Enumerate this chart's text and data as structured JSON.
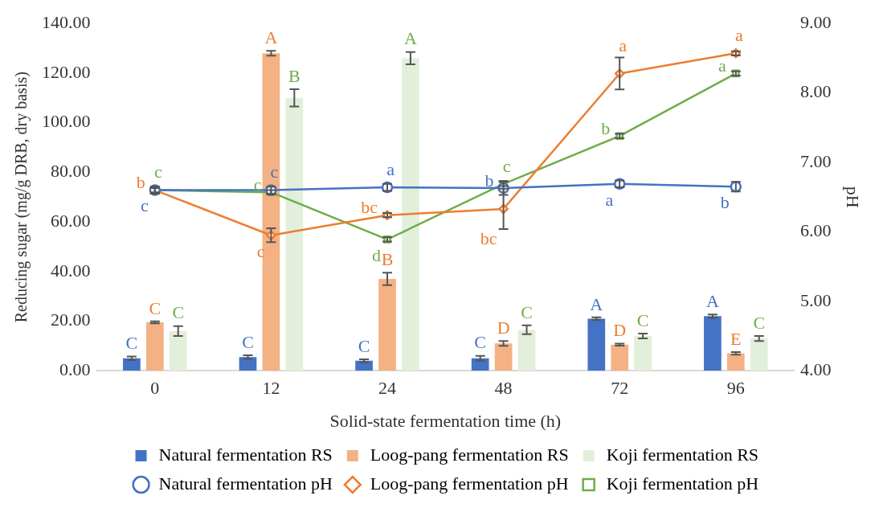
{
  "chart_data": {
    "type": "bar",
    "xlabel": "Solid-state fermentation time (h)",
    "ylabel": "Reducing sugar (mg/g DRB, dry basis)",
    "y2label": "pH",
    "categories": [
      "0",
      "12",
      "24",
      "48",
      "72",
      "96"
    ],
    "ylim": [
      0,
      140
    ],
    "yticks": [
      {
        "value": 0,
        "label": "0.00"
      },
      {
        "value": 20,
        "label": "20.00"
      },
      {
        "value": 40,
        "label": "40.00"
      },
      {
        "value": 60,
        "label": "60.00"
      },
      {
        "value": 80,
        "label": "80.00"
      },
      {
        "value": 100,
        "label": "100.00"
      },
      {
        "value": 120,
        "label": "120.00"
      },
      {
        "value": 140,
        "label": "140.00"
      }
    ],
    "y2lim": [
      4,
      9
    ],
    "y2ticks": [
      {
        "value": 4,
        "label": "4.00"
      },
      {
        "value": 5,
        "label": "5.00"
      },
      {
        "value": 6,
        "label": "6.00"
      },
      {
        "value": 7,
        "label": "7.00"
      },
      {
        "value": 8,
        "label": "8.00"
      },
      {
        "value": 9,
        "label": "9.00"
      }
    ],
    "grid": false,
    "legend": "bottom",
    "series": [
      {
        "name": "Natural fermentation RS",
        "color": "#4472c4",
        "values": [
          5,
          5.5,
          4,
          5,
          21,
          22
        ],
        "errors": [
          0.7,
          0.7,
          0.6,
          1,
          0.5,
          0.7
        ],
        "value_labels": [
          "C",
          "C",
          "C",
          "C",
          "A",
          "A"
        ]
      },
      {
        "name": "Loog-pang fermentation RS",
        "color": "#f4b183",
        "values": [
          19.5,
          128,
          37,
          11,
          10.5,
          7
        ],
        "errors": [
          0.4,
          1,
          2.5,
          1,
          0.4,
          0.5
        ],
        "value_labels": [
          "C",
          "A",
          "B",
          "D",
          "D",
          "E"
        ]
      },
      {
        "name": "Koji fermentation RS",
        "color": "#e2efda",
        "values": [
          16,
          110,
          126,
          16.5,
          14,
          13
        ],
        "errors": [
          2,
          3.5,
          2.5,
          1.8,
          1,
          1
        ],
        "value_labels": [
          "C",
          "B",
          "A",
          "C",
          "C",
          "C"
        ]
      },
      {
        "name": "Natural fermentation pH",
        "type": "line",
        "axis": "y2",
        "color": "#4472c4",
        "marker": "circle",
        "values": [
          6.6,
          6.6,
          6.64,
          6.63,
          6.69,
          6.65
        ],
        "errors": [
          0.05,
          0.05,
          0.05,
          0.1,
          0.05,
          0.07
        ],
        "value_labels": [
          "c",
          "c",
          "a",
          "b",
          "a",
          "b"
        ]
      },
      {
        "name": "Loog-pang fermentation pH",
        "type": "line",
        "axis": "y2",
        "color": "#ed7d31",
        "marker": "diamond",
        "values": [
          6.6,
          5.95,
          6.24,
          6.33,
          8.28,
          8.57
        ],
        "errors": [
          0.05,
          0.1,
          0.03,
          0.29,
          0.23,
          0.03
        ],
        "value_labels": [
          "b",
          "c",
          "bc",
          "bc",
          "a",
          "a"
        ]
      },
      {
        "name": "Koji fermentation pH",
        "type": "line",
        "axis": "y2",
        "color": "#70ad47",
        "marker": "square",
        "values": [
          6.6,
          6.57,
          5.89,
          6.69,
          7.38,
          8.28
        ],
        "errors": [
          0.03,
          0.03,
          0.03,
          0.03,
          0.03,
          0.03
        ],
        "value_labels": [
          "c",
          "c",
          "d",
          "c",
          "b",
          "a"
        ]
      }
    ]
  }
}
